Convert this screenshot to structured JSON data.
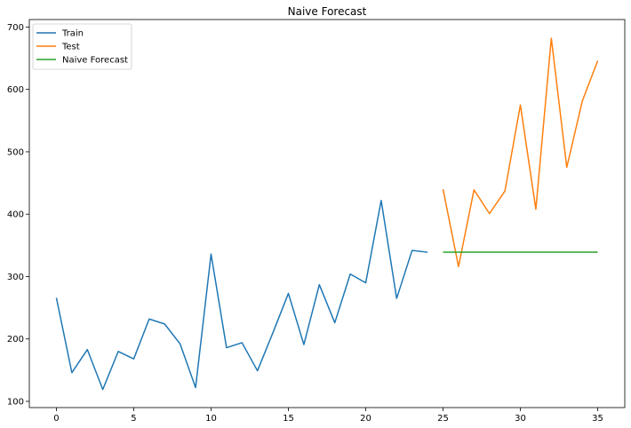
{
  "chart_data": {
    "type": "line",
    "title": "Naive Forecast",
    "xlabel": "",
    "ylabel": "",
    "xlim": [
      -1.75,
      36.75
    ],
    "ylim": [
      90,
      712
    ],
    "xticks": [
      0,
      5,
      10,
      15,
      20,
      25,
      30,
      35
    ],
    "yticks": [
      100,
      200,
      300,
      400,
      500,
      600,
      700
    ],
    "grid": false,
    "legend_position": "top-left",
    "series": [
      {
        "name": "Train",
        "color": "#1f77b4",
        "x": [
          0,
          1,
          2,
          3,
          4,
          5,
          6,
          7,
          8,
          9,
          10,
          11,
          12,
          13,
          14,
          15,
          16,
          17,
          18,
          19,
          20,
          21,
          22,
          23,
          24
        ],
        "y": [
          266,
          146,
          183,
          119,
          180,
          168,
          232,
          224,
          192,
          122,
          336,
          186,
          194,
          149,
          210,
          273,
          191,
          287,
          226,
          304,
          290,
          422,
          265,
          342,
          339
        ]
      },
      {
        "name": "Test",
        "color": "#ff7f0e",
        "x": [
          25,
          26,
          27,
          28,
          29,
          30,
          31,
          32,
          33,
          34,
          35
        ],
        "y": [
          440,
          316,
          439,
          401,
          437,
          575,
          408,
          682,
          475,
          581,
          646
        ]
      },
      {
        "name": "Naive Forecast",
        "color": "#2ca02c",
        "x": [
          25,
          26,
          27,
          28,
          29,
          30,
          31,
          32,
          33,
          34,
          35
        ],
        "y": [
          339,
          339,
          339,
          339,
          339,
          339,
          339,
          339,
          339,
          339,
          339
        ]
      }
    ]
  }
}
